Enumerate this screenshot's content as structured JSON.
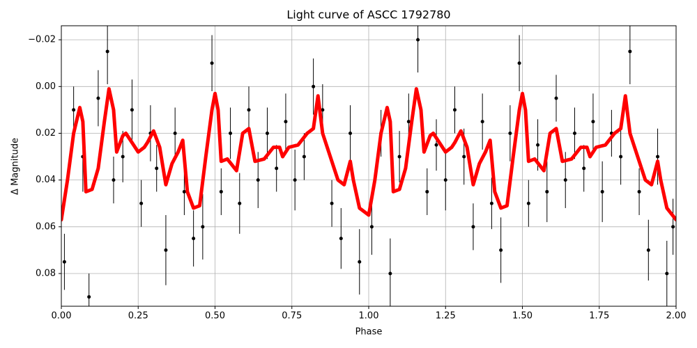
{
  "chart_data": {
    "type": "line",
    "title": "Light curve of ASCC 1792780",
    "xlabel": "Phase",
    "ylabel": "Δ Magnitude",
    "xlim": [
      0,
      2
    ],
    "ylim": [
      -0.026,
      0.094
    ],
    "invert_y": true,
    "grid": true,
    "xticks": [
      {
        "value": 0,
        "label": "0.00"
      },
      0.25,
      {
        "value": 0.5,
        "label": "0.50"
      },
      0.75,
      {
        "value": 1,
        "label": "1.00"
      },
      1.25,
      {
        "value": 1.5,
        "label": "1.50"
      },
      1.75,
      {
        "value": 2,
        "label": "2.00"
      }
    ],
    "yticks": [
      {
        "value": -0.02,
        "label": "−0.02"
      },
      {
        "value": 0,
        "label": "0.00"
      },
      0.02,
      0.04,
      0.06,
      0.08
    ],
    "series": [
      {
        "type": "scatter",
        "color": "#000000",
        "x": [
          0.01,
          0.04,
          0.07,
          0.09,
          0.12,
          0.15,
          0.17,
          0.2,
          0.23,
          0.26,
          0.29,
          0.31,
          0.34,
          0.37,
          0.4,
          0.43,
          0.46,
          0.49,
          0.52,
          0.55,
          0.58,
          0.61,
          0.64,
          0.67,
          0.7,
          0.73,
          0.76,
          0.79,
          0.82,
          0.85,
          0.88,
          0.91,
          0.94,
          0.97,
          1.01,
          1.04,
          1.07,
          1.1,
          1.13,
          1.16,
          1.19,
          1.22,
          1.25,
          1.28,
          1.31,
          1.34,
          1.37,
          1.4,
          1.43,
          1.46,
          1.49,
          1.52,
          1.55,
          1.58,
          1.61,
          1.64,
          1.67,
          1.7,
          1.73,
          1.76,
          1.79,
          1.82,
          1.85,
          1.88,
          1.91,
          1.94,
          1.97,
          1.99
        ],
        "values": [
          0.075,
          0.01,
          0.03,
          0.09,
          0.005,
          -0.015,
          0.04,
          0.03,
          0.01,
          0.05,
          0.02,
          0.035,
          0.07,
          0.02,
          0.045,
          0.065,
          0.06,
          -0.01,
          0.045,
          0.02,
          0.05,
          0.01,
          0.04,
          0.02,
          0.035,
          0.015,
          0.04,
          0.03,
          0.0,
          0.01,
          0.05,
          0.065,
          0.02,
          0.075,
          0.06,
          0.02,
          0.08,
          0.03,
          0.015,
          -0.02,
          0.045,
          0.025,
          0.04,
          0.01,
          0.03,
          0.06,
          0.015,
          0.05,
          0.07,
          0.02,
          -0.01,
          0.05,
          0.025,
          0.045,
          0.005,
          0.04,
          0.02,
          0.035,
          0.015,
          0.045,
          0.02,
          0.03,
          -0.015,
          0.045,
          0.07,
          0.03,
          0.08,
          0.06
        ],
        "errors": [
          0.012,
          0.01,
          0.015,
          0.01,
          0.012,
          0.014,
          0.01,
          0.011,
          0.013,
          0.01,
          0.012,
          0.01,
          0.015,
          0.011,
          0.01,
          0.012,
          0.014,
          0.012,
          0.01,
          0.011,
          0.013,
          0.01,
          0.012,
          0.011,
          0.01,
          0.012,
          0.013,
          0.01,
          0.012,
          0.011,
          0.01,
          0.013,
          0.012,
          0.014,
          0.012,
          0.01,
          0.015,
          0.011,
          0.012,
          0.014,
          0.01,
          0.011,
          0.013,
          0.01,
          0.012,
          0.01,
          0.012,
          0.011,
          0.014,
          0.012,
          0.012,
          0.01,
          0.011,
          0.013,
          0.01,
          0.012,
          0.011,
          0.01,
          0.012,
          0.013,
          0.01,
          0.012,
          0.014,
          0.01,
          0.013,
          0.012,
          0.014,
          0.012
        ]
      },
      {
        "type": "line",
        "color": "#ff0000",
        "x": [
          0,
          0.02,
          0.04,
          0.06,
          0.07,
          0.08,
          0.1,
          0.12,
          0.14,
          0.155,
          0.17,
          0.18,
          0.2,
          0.21,
          0.25,
          0.27,
          0.28,
          0.3,
          0.32,
          0.34,
          0.36,
          0.38,
          0.395,
          0.41,
          0.43,
          0.45,
          0.47,
          0.49,
          0.5,
          0.51,
          0.52,
          0.54,
          0.57,
          0.59,
          0.61,
          0.63,
          0.66,
          0.69,
          0.71,
          0.72,
          0.74,
          0.77,
          0.8,
          0.82,
          0.835,
          0.85,
          0.87,
          0.9,
          0.92,
          0.94,
          0.95,
          0.97,
          0.99,
          1.0,
          1.02,
          1.04,
          1.06,
          1.07,
          1.08,
          1.1,
          1.12,
          1.14,
          1.155,
          1.17,
          1.18,
          1.2,
          1.21,
          1.25,
          1.27,
          1.28,
          1.3,
          1.32,
          1.34,
          1.36,
          1.38,
          1.395,
          1.41,
          1.43,
          1.45,
          1.47,
          1.49,
          1.5,
          1.51,
          1.52,
          1.54,
          1.57,
          1.59,
          1.61,
          1.63,
          1.66,
          1.69,
          1.71,
          1.72,
          1.74,
          1.77,
          1.8,
          1.82,
          1.835,
          1.85,
          1.87,
          1.9,
          1.92,
          1.94,
          1.95,
          1.97,
          2.0
        ],
        "values": [
          0.057,
          0.04,
          0.02,
          0.009,
          0.015,
          0.045,
          0.044,
          0.035,
          0.015,
          0.001,
          0.01,
          0.028,
          0.021,
          0.02,
          0.028,
          0.026,
          0.024,
          0.019,
          0.026,
          0.042,
          0.033,
          0.028,
          0.023,
          0.045,
          0.052,
          0.051,
          0.03,
          0.01,
          0.003,
          0.01,
          0.032,
          0.031,
          0.036,
          0.02,
          0.018,
          0.032,
          0.031,
          0.026,
          0.026,
          0.03,
          0.026,
          0.025,
          0.02,
          0.018,
          0.004,
          0.02,
          0.028,
          0.04,
          0.042,
          0.032,
          0.04,
          0.052,
          0.054,
          0.055,
          0.04,
          0.02,
          0.009,
          0.015,
          0.045,
          0.044,
          0.035,
          0.015,
          0.001,
          0.01,
          0.028,
          0.021,
          0.02,
          0.028,
          0.026,
          0.024,
          0.019,
          0.026,
          0.042,
          0.033,
          0.028,
          0.023,
          0.045,
          0.052,
          0.051,
          0.03,
          0.01,
          0.003,
          0.01,
          0.032,
          0.031,
          0.036,
          0.02,
          0.018,
          0.032,
          0.031,
          0.026,
          0.026,
          0.03,
          0.026,
          0.025,
          0.02,
          0.018,
          0.004,
          0.02,
          0.028,
          0.04,
          0.042,
          0.032,
          0.04,
          0.052,
          0.057
        ]
      }
    ]
  }
}
